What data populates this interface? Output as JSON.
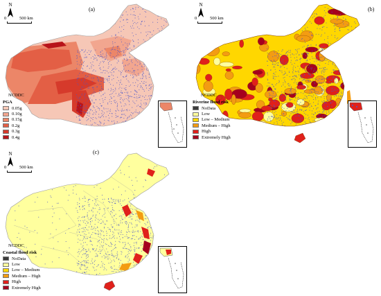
{
  "panels": [
    {
      "letter": "(a)",
      "north": "N",
      "scale": {
        "zero": "0",
        "distance": "500 km"
      },
      "credit": "NCDDC",
      "legend": {
        "title": "PGA",
        "items": [
          {
            "label": "0.05g",
            "color": "#f6c7b6"
          },
          {
            "label": "0.10g",
            "color": "#f2a68f"
          },
          {
            "label": "0.15g",
            "color": "#ec8668"
          },
          {
            "label": "0.2g",
            "color": "#e35f45"
          },
          {
            "label": "0.3g",
            "color": "#d63a2b"
          },
          {
            "label": "0.4g",
            "color": "#b8141a"
          }
        ]
      }
    },
    {
      "letter": "(b)",
      "north": "N",
      "scale": {
        "zero": "0",
        "distance": "500 km"
      },
      "credit": "NCDDC",
      "legend": {
        "title": "Riverine flood risk",
        "items": [
          {
            "label": "NoData",
            "color": "#3b3b3b"
          },
          {
            "label": "Low",
            "color": "#ffff9e"
          },
          {
            "label": "Low – Medium",
            "color": "#ffd700"
          },
          {
            "label": "Medium – High",
            "color": "#f39c12"
          },
          {
            "label": "High",
            "color": "#e0201b"
          },
          {
            "label": "Extremely High",
            "color": "#a5001e"
          }
        ]
      }
    },
    {
      "letter": "(c)",
      "north": "N",
      "scale": {
        "zero": "0",
        "distance": "500 km"
      },
      "credit": "NCDDC",
      "legend": {
        "title": "Coastal flood risk",
        "items": [
          {
            "label": "NoData",
            "color": "#3b3b3b"
          },
          {
            "label": "Low",
            "color": "#ffff9e"
          },
          {
            "label": "Low – Medium",
            "color": "#ffd700"
          },
          {
            "label": "Medium – High",
            "color": "#f39c12"
          },
          {
            "label": "High",
            "color": "#e0201b"
          },
          {
            "label": "Extremely High",
            "color": "#a5001e"
          }
        ]
      }
    }
  ],
  "colors": {
    "dots": "#4a55c8",
    "outline": "#9a9a9a"
  }
}
